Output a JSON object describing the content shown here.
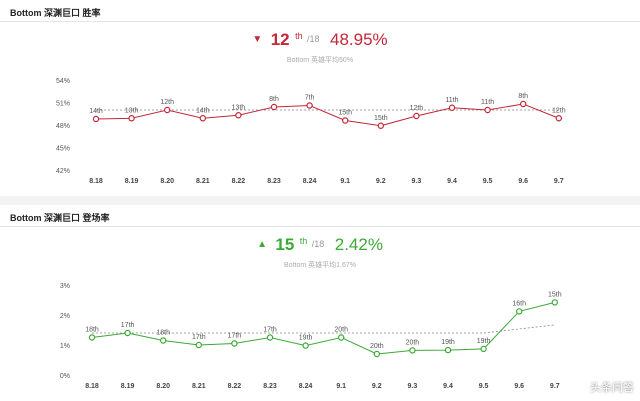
{
  "watermark": "头条问答",
  "charts": [
    {
      "type": "line",
      "panel_title": "Bottom 深渊巨口 胜率",
      "rank": "12",
      "rank_suffix": "th",
      "rank_total": "/18",
      "percent": "48.95%",
      "trend": "down",
      "average_text": "Bottom 英雄平均50%",
      "color": "#c42737",
      "avg_color": "#888888",
      "average_value": 50,
      "yticks": [
        {
          "v": 54,
          "label": "54%"
        },
        {
          "v": 51,
          "label": "51%"
        },
        {
          "v": 48,
          "label": "48%"
        },
        {
          "v": 45,
          "label": "45%"
        },
        {
          "v": 42,
          "label": "42%"
        }
      ],
      "ylim": [
        42,
        54
      ],
      "categories": [
        "8.18",
        "8.19",
        "8.20",
        "8.21",
        "8.22",
        "8.23",
        "8.24",
        "9.1",
        "9.2",
        "9.3",
        "9.4",
        "9.5",
        "9.6",
        "9.7"
      ],
      "values": [
        48.8,
        48.9,
        50.0,
        48.9,
        49.3,
        50.4,
        50.6,
        48.6,
        47.9,
        49.2,
        50.3,
        50.0,
        50.8,
        48.9
      ],
      "labels": [
        "14th",
        "13th",
        "12th",
        "14th",
        "13th",
        "8th",
        "7th",
        "15th",
        "15th",
        "12th",
        "11th",
        "11th",
        "8th",
        "12th"
      ]
    },
    {
      "type": "line",
      "panel_title": "Bottom 深渊巨口 登场率",
      "rank": "15",
      "rank_suffix": "th",
      "rank_total": "/18",
      "percent": "2.42%",
      "trend": "up",
      "average_text": "Bottom 英雄平均1.67%",
      "color": "#3aaa35",
      "avg_color": "#888888",
      "average_value": 1.4,
      "average_end_value": 1.67,
      "yticks": [
        {
          "v": 3,
          "label": "3%"
        },
        {
          "v": 2,
          "label": "2%"
        },
        {
          "v": 1,
          "label": "1%"
        },
        {
          "v": 0,
          "label": "0%"
        }
      ],
      "ylim": [
        0,
        3
      ],
      "categories": [
        "8.18",
        "8.19",
        "8.20",
        "8.21",
        "8.22",
        "8.23",
        "8.24",
        "9.1",
        "9.2",
        "9.3",
        "9.4",
        "9.5",
        "9.6",
        "9.7"
      ],
      "values": [
        1.25,
        1.4,
        1.15,
        1.0,
        1.05,
        1.25,
        0.98,
        1.25,
        0.7,
        0.82,
        0.83,
        0.87,
        2.12,
        2.42
      ],
      "labels": [
        "18th",
        "17th",
        "18th",
        "17th",
        "17th",
        "17th",
        "19th",
        "20th",
        "20th",
        "20th",
        "19th",
        "19th",
        "16th",
        "15th"
      ]
    }
  ]
}
